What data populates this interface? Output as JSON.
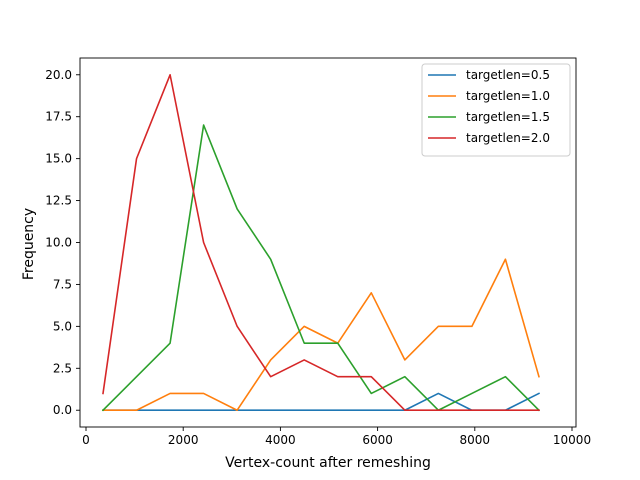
{
  "chart_data": {
    "type": "line",
    "title": "",
    "xlabel": "Vertex-count after remeshing",
    "ylabel": "Frequency",
    "xlim": [
      0,
      10000
    ],
    "ylim": [
      -1,
      21
    ],
    "xticks": [
      0,
      2000,
      4000,
      6000,
      8000,
      10000
    ],
    "xtick_labels": [
      "0",
      "2000",
      "4000",
      "6000",
      "8000",
      "10000"
    ],
    "yticks": [
      0,
      2.5,
      5,
      7.5,
      10,
      12.5,
      15,
      17.5,
      20
    ],
    "ytick_labels": [
      "0.0",
      "2.5",
      "5.0",
      "7.5",
      "10.0",
      "12.5",
      "15.0",
      "17.5",
      "20.0"
    ],
    "grid": false,
    "legend_position": "top-right",
    "x": [
      350,
      1040,
      1730,
      2420,
      3110,
      3800,
      4490,
      5180,
      5870,
      6560,
      7250,
      7940,
      8630,
      9320
    ],
    "series": [
      {
        "name": "targetlen=0.5",
        "color": "#1f77b4",
        "values": [
          0,
          0,
          0,
          0,
          0,
          0,
          0,
          0,
          0,
          0,
          1,
          0,
          0,
          1
        ]
      },
      {
        "name": "targetlen=1.0",
        "color": "#ff7f0e",
        "values": [
          0,
          0,
          1,
          1,
          0,
          3,
          5,
          4,
          7,
          3,
          5,
          5,
          9,
          2
        ]
      },
      {
        "name": "targetlen=1.5",
        "color": "#2ca02c",
        "values": [
          0,
          2,
          4,
          17,
          12,
          9,
          4,
          4,
          1,
          2,
          0,
          1,
          2,
          0
        ]
      },
      {
        "name": "targetlen=2.0",
        "color": "#d62728",
        "values": [
          1,
          15,
          20,
          10,
          5,
          2,
          3,
          2,
          2,
          0,
          0,
          0,
          0,
          0
        ]
      }
    ]
  }
}
